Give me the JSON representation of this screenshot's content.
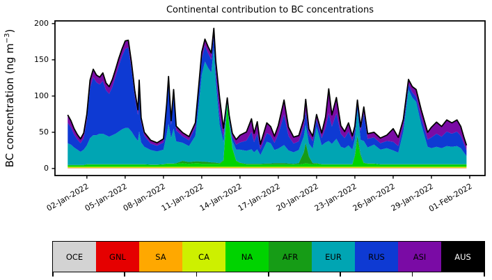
{
  "chart": {
    "title": "Continental contribution to BC concentrations",
    "ylabel_prefix": "BC concentration (ng m",
    "ylabel_sup": "−3",
    "ylabel_suffix": ")"
  },
  "chart_data": {
    "type": "area",
    "stacked": true,
    "title": "Continental contribution to BC concentrations",
    "xlabel": "",
    "ylabel": "BC concentration (ng m^-3)",
    "x_unit": "days since 01-Jan-2022 00:00",
    "grid": false,
    "legend_position": "bottom",
    "xlim": [
      -1.5,
      32.2
    ],
    "ylim": [
      -9.7,
      203.7
    ],
    "yticks": [
      0,
      50,
      100,
      150,
      200
    ],
    "xticks": [
      {
        "value": 1,
        "label": "02-Jan-2022"
      },
      {
        "value": 4,
        "label": "05-Jan-2022"
      },
      {
        "value": 7,
        "label": "08-Jan-2022"
      },
      {
        "value": 10,
        "label": "11-Jan-2022"
      },
      {
        "value": 13,
        "label": "14-Jan-2022"
      },
      {
        "value": 16,
        "label": "17-Jan-2022"
      },
      {
        "value": 19,
        "label": "20-Jan-2022"
      },
      {
        "value": 22,
        "label": "23-Jan-2022"
      },
      {
        "value": 25,
        "label": "26-Jan-2022"
      },
      {
        "value": 28,
        "label": "29-Jan-2022"
      },
      {
        "value": 31,
        "label": "01-Feb-2022"
      }
    ],
    "outline_color": "#000000",
    "outline_width": 1.8,
    "x": [
      -0.5,
      -0.25,
      0,
      0.25,
      0.5,
      0.75,
      1,
      1.25,
      1.5,
      1.75,
      2,
      2.25,
      2.5,
      2.75,
      3,
      3.25,
      3.5,
      3.75,
      4,
      4.25,
      4.5,
      4.75,
      5,
      5.1,
      5.25,
      5.5,
      6,
      6.5,
      7,
      7.25,
      7.4,
      7.6,
      7.8,
      8,
      8.5,
      9,
      9.5,
      9.75,
      10,
      10.25,
      10.5,
      10.75,
      10.95,
      11.1,
      11.4,
      11.7,
      12,
      12.15,
      12.4,
      12.7,
      13,
      13.5,
      13.9,
      14.1,
      14.35,
      14.6,
      15.1,
      15.4,
      15.7,
      16,
      16.45,
      16.8,
      17.2,
      17.6,
      18,
      18.15,
      18.4,
      18.7,
      19,
      19.4,
      19.7,
      19.95,
      20.2,
      20.55,
      20.9,
      21.2,
      21.5,
      21.8,
      22,
      22.2,
      22.45,
      22.7,
      23,
      23.5,
      24,
      24.5,
      25,
      25.4,
      25.8,
      26.2,
      26.5,
      26.8,
      27.2,
      27.7,
      28,
      28.4,
      28.8,
      29.2,
      29.6,
      30,
      30.3,
      30.55,
      30.75
    ],
    "series": [
      {
        "name": "OCE",
        "color": "#d3d3d3",
        "constant": 0.4
      },
      {
        "name": "GNL",
        "color": "#e50000",
        "constant": 0.15
      },
      {
        "name": "SA",
        "color": "#ffa800",
        "constant": 0.7
      },
      {
        "name": "CA",
        "color": "#cdf000",
        "constant": 1.2
      },
      {
        "name": "NA",
        "color": "#00d300",
        "values": [
          2,
          2,
          2,
          2,
          2,
          2,
          3,
          3,
          3,
          3,
          3,
          3,
          3,
          3,
          3,
          3,
          3,
          3,
          3,
          3,
          3,
          3,
          3,
          3,
          3,
          3,
          2.5,
          2.5,
          3,
          4,
          4,
          4,
          4,
          4,
          5,
          4,
          5,
          5,
          4,
          4,
          4,
          4,
          4,
          4,
          4,
          8,
          86,
          58,
          25,
          8,
          5,
          3,
          3,
          3,
          3,
          3,
          3,
          3,
          3,
          3,
          3,
          3,
          3,
          3,
          4,
          5,
          4,
          3,
          4,
          3,
          3,
          3,
          3,
          3,
          3,
          3,
          3,
          3,
          14,
          35,
          14,
          5,
          4,
          4,
          3,
          3,
          3,
          3,
          3,
          3,
          3,
          3,
          3,
          3,
          3,
          3,
          3,
          3,
          3,
          3,
          3,
          3,
          3
        ]
      },
      {
        "name": "AFR",
        "color": "#169c16",
        "values": [
          0.5,
          0.5,
          0.5,
          0.5,
          0.5,
          0.5,
          0.5,
          0.5,
          0.5,
          0.5,
          0.5,
          0.5,
          0.5,
          0.5,
          0.5,
          0.5,
          0.5,
          0.5,
          0.5,
          0.5,
          0.5,
          0.5,
          0.5,
          0.5,
          0.5,
          0.5,
          0.5,
          0.5,
          0.5,
          0.5,
          0.5,
          0.5,
          0.5,
          1,
          3,
          2.5,
          2.5,
          2.5,
          3,
          3,
          2.5,
          2,
          2,
          1.5,
          1,
          1,
          1,
          1,
          1,
          0.5,
          0.5,
          1,
          1,
          1,
          1,
          1,
          1.5,
          1.5,
          2,
          2,
          2,
          1.5,
          1,
          2,
          16,
          28,
          10,
          2,
          1,
          0.5,
          0.5,
          0.5,
          0.5,
          0.5,
          0.5,
          0.5,
          0.5,
          0.5,
          2,
          8,
          3,
          0.5,
          0.5,
          0.5,
          0.5,
          0.5,
          0.5,
          0.5,
          0.5,
          0.5,
          0.5,
          0.5,
          0.5,
          0.5,
          0.5,
          0.5,
          0.5,
          0.5,
          0.5,
          0.5,
          0.5,
          0.5,
          0.5
        ]
      },
      {
        "name": "EUR",
        "color": "#00a5b3",
        "values": [
          30,
          28,
          24,
          21,
          18,
          21,
          26,
          36,
          40,
          40,
          42,
          42,
          40,
          38,
          40,
          42,
          45,
          48,
          50,
          50,
          45,
          38,
          32,
          45,
          30,
          24,
          20,
          18,
          20,
          40,
          55,
          35,
          48,
          30,
          25,
          22,
          35,
          75,
          120,
          138,
          130,
          124,
          158,
          112,
          53,
          25,
          4,
          6,
          10,
          15,
          18,
          18,
          20,
          16,
          20,
          12,
          30,
          28,
          18,
          20,
          25,
          18,
          16,
          18,
          22,
          25,
          18,
          20,
          50,
          26,
          30,
          32,
          28,
          35,
          24,
          22,
          26,
          20,
          22,
          35,
          20,
          30,
          22,
          26,
          20,
          22,
          19,
          16,
          45,
          103,
          92,
          86,
          55,
          24,
          22,
          24,
          22,
          25,
          24,
          25,
          22,
          16,
          11
        ]
      },
      {
        "name": "RUS",
        "color": "#0e3ad3",
        "values": [
          28,
          24,
          18,
          14,
          12,
          16,
          35,
          70,
          80,
          73,
          68,
          73,
          62,
          59,
          67,
          79,
          91,
          101,
          109,
          111,
          86,
          56,
          36,
          62,
          28,
          15,
          9,
          8,
          10,
          35,
          56,
          18,
          46,
          15,
          9,
          8,
          12,
          18,
          22,
          22,
          20,
          18,
          17,
          15,
          12,
          8,
          2,
          3,
          5,
          7,
          10,
          14,
          24,
          14,
          22,
          8,
          12,
          11,
          10,
          20,
          42,
          20,
          12,
          12,
          14,
          18,
          12,
          10,
          10,
          10,
          20,
          38,
          24,
          35,
          18,
          14,
          19,
          12,
          12,
          10,
          12,
          38,
          12,
          10,
          9,
          10,
          12,
          9,
          8,
          7,
          7,
          7,
          9,
          10,
          15,
          18,
          16,
          20,
          18,
          20,
          17,
          12,
          8
        ]
      },
      {
        "name": "ASI",
        "color": "#7a0ba5",
        "values": [
          11,
          9,
          8,
          7,
          6,
          7,
          8,
          10,
          11,
          10,
          10,
          11,
          10,
          10,
          10,
          10,
          10,
          10,
          11,
          10,
          9,
          8,
          7,
          9,
          6,
          5,
          4.5,
          4,
          5,
          7,
          9,
          6,
          8,
          6,
          5,
          5,
          6,
          8,
          9,
          9,
          9,
          9,
          10,
          13,
          25,
          11,
          2,
          3,
          5,
          7,
          10,
          12,
          18,
          12,
          16,
          7,
          14,
          12,
          9,
          12,
          20,
          12,
          9,
          8,
          10,
          17,
          8,
          7,
          7,
          7,
          15,
          34,
          16,
          22,
          11,
          9,
          12,
          7,
          6,
          4,
          6,
          9,
          7,
          7,
          7,
          8,
          18,
          12,
          9,
          7,
          8,
          10,
          11,
          10,
          14,
          16,
          14,
          16,
          15,
          16,
          13,
          9,
          7
        ]
      },
      {
        "name": "AUS",
        "color": "#000000",
        "constant": 0.05
      }
    ]
  },
  "legend": {
    "axis_tick_count": 7,
    "items": [
      {
        "label": "OCE",
        "color": "#d3d3d3",
        "text": "#000000"
      },
      {
        "label": "GNL",
        "color": "#e50000",
        "text": "#000000"
      },
      {
        "label": "SA",
        "color": "#ffa800",
        "text": "#000000"
      },
      {
        "label": "CA",
        "color": "#cdf000",
        "text": "#000000"
      },
      {
        "label": "NA",
        "color": "#00d300",
        "text": "#000000"
      },
      {
        "label": "AFR",
        "color": "#169c16",
        "text": "#000000"
      },
      {
        "label": "EUR",
        "color": "#00a5b3",
        "text": "#000000"
      },
      {
        "label": "RUS",
        "color": "#0e3ad3",
        "text": "#000000"
      },
      {
        "label": "ASI",
        "color": "#7a0ba5",
        "text": "#000000"
      },
      {
        "label": "AUS",
        "color": "#000000",
        "text": "#ffffff"
      }
    ]
  }
}
